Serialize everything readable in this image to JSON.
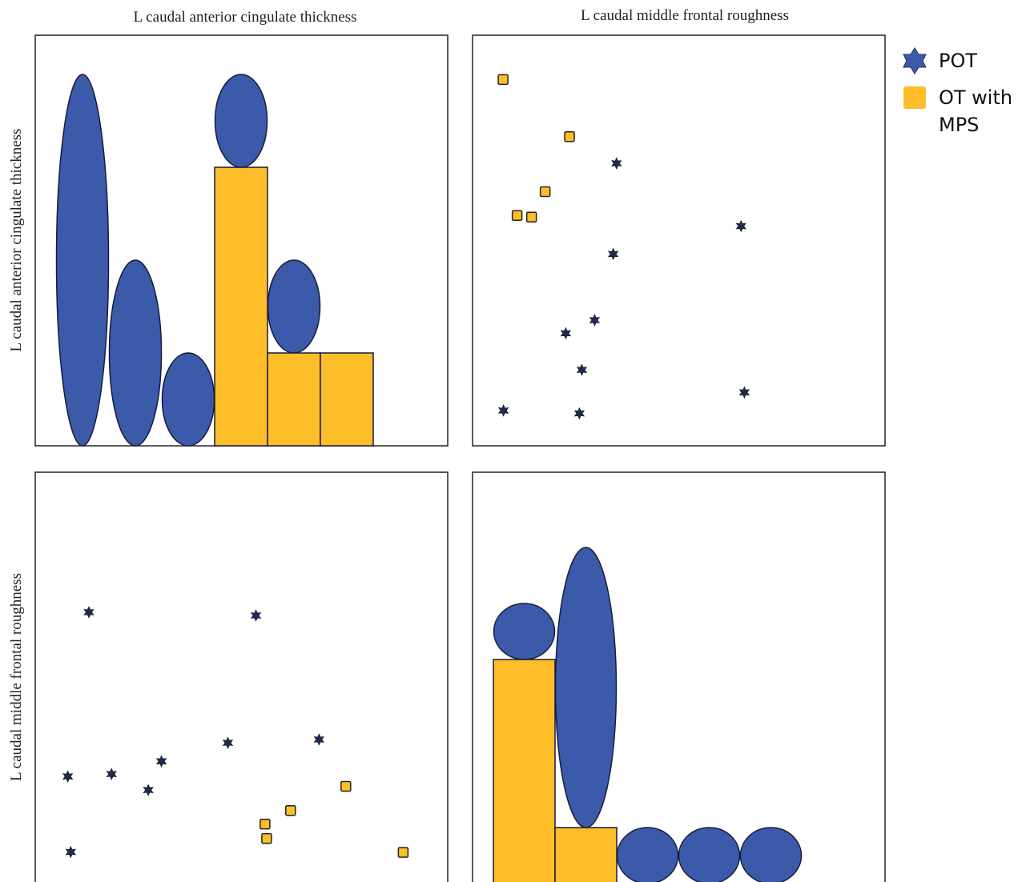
{
  "chart_data": {
    "type": "scatter-matrix",
    "variables": [
      "L caudal anterior cingulate thickness",
      "L caudal middle frontal roughness"
    ],
    "legend": {
      "placement": "top-right",
      "items": [
        {
          "label": "POT",
          "marker": "star-icon",
          "color": "#3b5aaa"
        },
        {
          "label": "OT with MPS",
          "marker": "square-icon",
          "color": "#fdbe2a"
        }
      ]
    },
    "colors": {
      "pot": "#3b5aaa",
      "ot_mps": "#fdbe2a",
      "outline": "#1a1a3a"
    },
    "diagonal": [
      {
        "variable": "L caudal anterior cingulate thickness",
        "bins": 6,
        "pot_counts": [
          4,
          2,
          1,
          1,
          1,
          0
        ],
        "ot_mps_counts": [
          0,
          0,
          0,
          3,
          1,
          1
        ]
      },
      {
        "variable": "L caudal middle frontal roughness",
        "bins": 5,
        "pot_counts": [
          1,
          5,
          1,
          1,
          1
        ],
        "ot_mps_counts": [
          4,
          1,
          0,
          0,
          0
        ]
      }
    ],
    "scatter": {
      "x_range": [
        0,
        100
      ],
      "y_range": [
        0,
        100
      ],
      "pot": [
        {
          "x": 7.5,
          "y": 8.6
        },
        {
          "x": 25.9,
          "y": 7.9
        },
        {
          "x": 26.5,
          "y": 18.5
        },
        {
          "x": 22.6,
          "y": 27.4
        },
        {
          "x": 29.6,
          "y": 30.6
        },
        {
          "x": 34.1,
          "y": 46.7
        },
        {
          "x": 34.9,
          "y": 68.8
        },
        {
          "x": 65.9,
          "y": 13.0
        },
        {
          "x": 65.1,
          "y": 53.5
        }
      ],
      "ot_mps": [
        {
          "x": 7.4,
          "y": 89.2
        },
        {
          "x": 23.5,
          "y": 75.3
        },
        {
          "x": 17.6,
          "y": 61.9
        },
        {
          "x": 10.8,
          "y": 56.1
        },
        {
          "x": 14.3,
          "y": 55.7
        }
      ]
    }
  }
}
